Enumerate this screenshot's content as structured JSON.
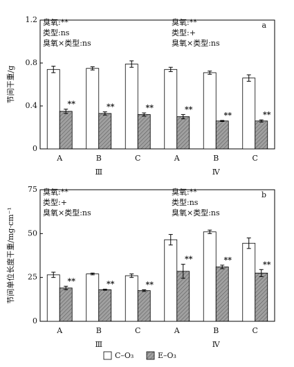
{
  "chart_data": [
    {
      "type": "bar",
      "panel_label": "a",
      "y_label": "节间干重/g",
      "categories": [
        "A",
        "B",
        "C",
        "A",
        "B",
        "C"
      ],
      "groups": [
        "Ⅲ",
        "Ⅳ"
      ],
      "annotations": [
        [
          "臭氧:**",
          "类型:ns",
          "臭氧×类型:ns"
        ],
        [
          "臭氧:**",
          "类型:+",
          "臭氧×类型:ns"
        ]
      ],
      "series": [
        {
          "name": "C–O₃",
          "color": "#ffffff",
          "values": [
            0.74,
            0.75,
            0.79,
            0.74,
            0.71,
            0.66
          ],
          "errors": [
            0.03,
            0.015,
            0.03,
            0.02,
            0.015,
            0.03
          ]
        },
        {
          "name": "E–O₃",
          "color": "#a0a0a0",
          "hatch": true,
          "values": [
            0.35,
            0.33,
            0.32,
            0.3,
            0.26,
            0.26
          ],
          "errors": [
            0.02,
            0.015,
            0.015,
            0.02,
            0.005,
            0.01
          ],
          "labels": [
            "**",
            "**",
            "**",
            "**",
            "**",
            "**"
          ]
        }
      ],
      "ylim": [
        0,
        1.2
      ],
      "yticks": [
        0,
        0.4,
        0.8,
        1.2
      ]
    },
    {
      "type": "bar",
      "panel_label": "b",
      "y_label": "节间单位长度干重/mg·cm⁻¹",
      "categories": [
        "A",
        "B",
        "C",
        "A",
        "B",
        "C"
      ],
      "groups": [
        "Ⅲ",
        "Ⅳ"
      ],
      "annotations": [
        [
          "臭氧:**",
          "类型:+",
          "臭氧×类型:ns"
        ],
        [
          "臭氧:**",
          "类型:ns",
          "臭氧×类型:ns"
        ]
      ],
      "series": [
        {
          "color": "#ffffff",
          "values": [
            26.5,
            27,
            26,
            46.5,
            51,
            44.5
          ],
          "errors": [
            1.5,
            0.5,
            1,
            3,
            1,
            3
          ]
        },
        {
          "color": "#a0a0a0",
          "hatch": true,
          "values": [
            19,
            18,
            17.5,
            28.5,
            31,
            27.5
          ],
          "errors": [
            1,
            0.3,
            0.5,
            4,
            1,
            2
          ],
          "labels": [
            "**",
            "**",
            "**",
            "**",
            "**",
            "**"
          ]
        }
      ],
      "ylim": [
        0,
        75
      ],
      "yticks": [
        0,
        25,
        50,
        75
      ]
    }
  ]
}
